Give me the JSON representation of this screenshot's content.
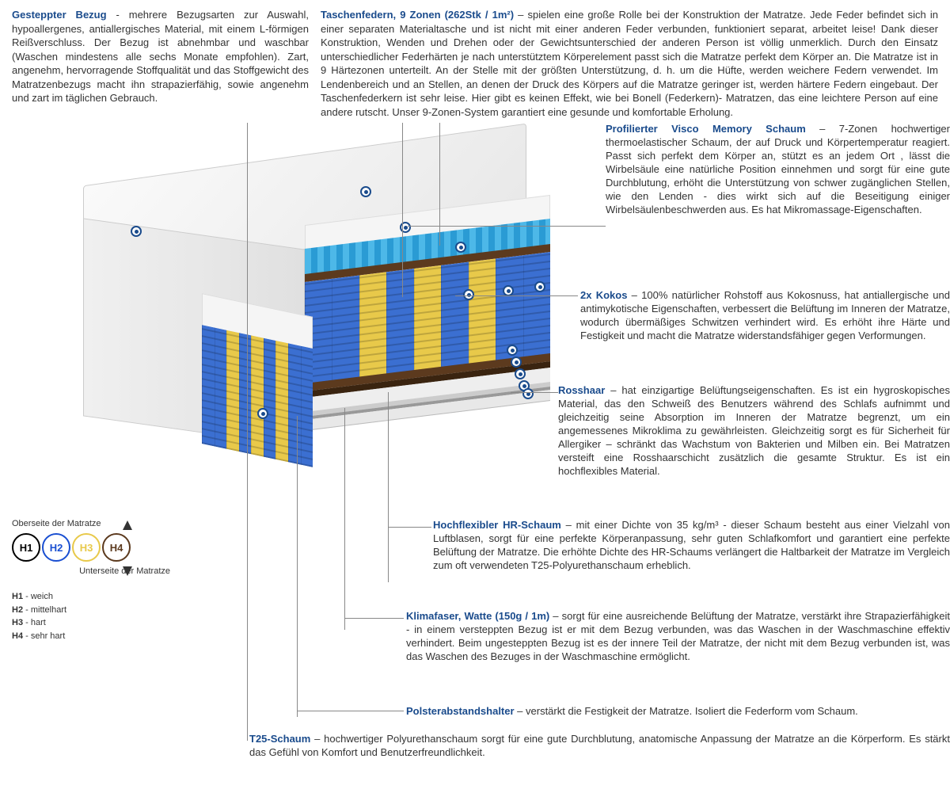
{
  "colors": {
    "heading": "#1a4b8c",
    "text": "#333333",
    "marker_border": "#1a4b8c",
    "line": "#888888",
    "spring_blue": "#3b6fd1",
    "spring_yellow": "#e8c94a",
    "kokos": "#5c3a1e",
    "visco_light": "#4db8e8",
    "visco_dark": "#2a9bd4"
  },
  "top_left": {
    "title": "Gesteppter Bezug",
    "sep": " - ",
    "text": "mehrere Bezugsarten zur Auswahl, hypoallergenes, antiallergisches Material, mit einem L-förmigen Reißverschluss. Der Bezug ist abnehmbar und waschbar (Waschen mindestens alle sechs Monate empfohlen). Zart, angenehm, hervorragende Stoffqualität und das Stoffgewicht des Matratzenbezugs macht ihn strapazierfähig, sowie angenehm und zart im täglichen Gebrauch."
  },
  "top_right": {
    "title": "Taschenfedern, 9 Zonen (262Stk / 1m²)",
    "sep": " – ",
    "text": "spielen eine große Rolle bei der Konstruktion der Matratze. Jede Feder befindet sich in einer separaten Materialtasche und ist nicht mit einer anderen Feder verbunden, funktioniert separat, arbeitet leise! Dank dieser Konstruktion, Wenden und Drehen oder der Gewichtsunterschied der anderen Person ist völlig unmerklich. Durch den Einsatz unterschiedlicher Federhärten je nach unterstütztem Körperelement passt sich die Matratze perfekt dem Körper an. Die Matratze ist in 9 Härtezonen unterteilt. An der Stelle mit der größten Unterstützung, d. h. um die Hüfte, werden weichere Federn verwendet. Im Lendenbereich und an Stellen, an denen der Druck des Körpers auf die Matratze geringer ist, werden härtere Federn eingebaut. Der Taschenfederkern ist sehr leise. Hier gibt es keinen Effekt, wie bei Bonell (Federkern)- Matratzen, das eine leichtere Person auf eine andere rutscht. Unser 9-Zonen-System garantiert eine gesunde und komfortable Erholung."
  },
  "callouts": [
    {
      "key": "visco",
      "title": "Profilierter Visco Memory Schaum",
      "sep": " – ",
      "text": "7-Zonen hochwertiger thermoelastischer Schaum, der auf Druck und Körpertemperatur reagiert. Passt sich perfekt dem Körper an, stützt es an jedem Ort , lässt die Wirbelsäule eine natürliche Position einnehmen und sorgt für eine gute Durchblutung, erhöht die Unterstützung von schwer zugänglichen Stellen, wie den Lenden - dies wirkt sich auf die Beseitigung einiger Wirbelsäulenbeschwerden aus. Es hat Mikromassage-Eigenschaften."
    },
    {
      "key": "kokos",
      "title": "2x Kokos",
      "sep": " – ",
      "text": "100% natürlicher Rohstoff aus Kokosnuss, hat antiallergische und antimykotische Eigenschaften, verbessert die Belüftung im Inneren der Matratze, wodurch übermäßiges Schwitzen verhindert wird. Es erhöht ihre Härte und Festigkeit und macht die Matratze widerstandsfähiger gegen Verformungen."
    },
    {
      "key": "rosshaar",
      "title": "Rosshaar",
      "sep": " – ",
      "text": "hat einzigartige Belüftungseigenschaften. Es ist ein hygroskopisches Material, das den Schweiß des Benutzers während des Schlafs aufnimmt und gleichzeitig seine Absorption im Inneren der Matratze begrenzt, um ein angemessenes Mikroklima zu gewährleisten. Gleichzeitig sorgt es für Sicherheit für Allergiker – schränkt das Wachstum von Bakterien und Milben ein. Bei Matratzen versteift eine Rosshaarschicht zusätzlich die gesamte Struktur. Es ist ein hochflexibles Material."
    },
    {
      "key": "hr",
      "title": "Hochflexibler HR-Schaum",
      "sep": " – ",
      "text": "mit einer Dichte von 35 kg/m³ - dieser Schaum besteht aus einer Vielzahl von Luftblasen, sorgt für eine perfekte Körperanpassung, sehr guten Schlafkomfort und garantiert eine perfekte Belüftung der Matratze. Die erhöhte Dichte des HR-Schaums verlängert die Haltbarkeit der Matratze im Vergleich zum oft verwendeten T25-Polyurethanschaum erheblich."
    },
    {
      "key": "klima",
      "title": "Klimafaser, Watte (150g / 1m)",
      "sep": " – ",
      "text": "sorgt für eine ausreichende Belüftung der Matratze, verstärkt ihre Strapazierfähigkeit - in einem versteppten Bezug ist er mit dem Bezug verbunden, was das Waschen in der Waschmaschine effektiv verhindert. Beim ungesteppten Bezug ist es der innere Teil der Matratze, der nicht mit dem Bezug verbunden ist, was das Waschen des Bezuges in der Waschmaschine ermöglicht."
    },
    {
      "key": "polster",
      "title": "Polsterabstandshalter",
      "sep": " – ",
      "text": "verstärkt die Festigkeit der Matratze. Isoliert die Federform vom Schaum."
    },
    {
      "key": "t25",
      "title": "T25-Schaum",
      "sep": " – ",
      "text": "hochwertiger Polyurethanschaum sorgt für eine gute Durchblutung, anatomische Anpassung der Matratze an die Körperform. Es stärkt das Gefühl von Komfort und Benutzerfreundlichkeit."
    }
  ],
  "legend": {
    "top_label": "Oberseite der Matratze",
    "bottom_label": "Unterseite der Matratze",
    "circles": [
      {
        "label": "H1",
        "color": "#000000"
      },
      {
        "label": "H2",
        "color": "#1a4fd1"
      },
      {
        "label": "H3",
        "color": "#e8c94a"
      },
      {
        "label": "H4",
        "color": "#5c3a1e"
      }
    ],
    "defs": [
      {
        "key": "H1",
        "label": "weich"
      },
      {
        "key": "H2",
        "label": "mittelhart"
      },
      {
        "key": "H3",
        "label": "hart"
      },
      {
        "key": "H4",
        "label": "sehr hart"
      }
    ]
  },
  "spring_zones": [
    "#3b6fd1",
    "#3b6fd1",
    "#e8c94a",
    "#3b6fd1",
    "#e8c94a",
    "#3b6fd1",
    "#e8c94a",
    "#3b6fd1",
    "#3b6fd1"
  ]
}
